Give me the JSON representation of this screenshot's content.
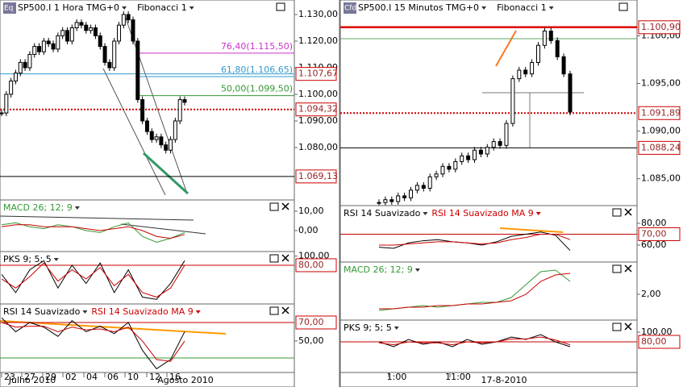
{
  "left": {
    "main": {
      "icon": "Eq",
      "title": "SP500.I 1 Hora TMG+0",
      "indicator": "Fibonacci 1",
      "ylim": [
        1060.3,
        1135.45
      ],
      "yticks": [
        {
          "value": 1130,
          "label": "1.130,00"
        },
        {
          "value": 1120,
          "label": "1.120,00"
        },
        {
          "value": 1110,
          "label": "1.110,00"
        },
        {
          "value": 1100,
          "label": "1.100,00"
        },
        {
          "value": 1090,
          "label": "1.090,00"
        },
        {
          "value": 1080,
          "label": "1.080,00"
        }
      ],
      "levels": [
        {
          "value": 1107.67,
          "label": "1.107,67",
          "color": "#3399cc"
        },
        {
          "value": 1094.32,
          "label": "1.094,32",
          "color": "#cc0000"
        },
        {
          "value": 1069.13,
          "label": "1.069,13",
          "color": "#000000"
        }
      ],
      "fibonacci": [
        {
          "value": 1115.5,
          "label": "76,40(1.115,50)",
          "color": "#cc33cc"
        },
        {
          "value": 1106.65,
          "label": "61,80(1.106,65)",
          "color": "#3399cc"
        },
        {
          "value": 1099.5,
          "label": "50,00(1.099,50)",
          "color": "#339933"
        }
      ],
      "prices": [
        1093,
        1100,
        1105,
        1108,
        1112,
        1110,
        1115,
        1118,
        1116,
        1120,
        1119,
        1117,
        1122,
        1124,
        1120,
        1125,
        1127,
        1126,
        1124,
        1125,
        1122,
        1118,
        1112,
        1110,
        1120,
        1126,
        1130,
        1128,
        1120,
        1098,
        1090,
        1086,
        1083,
        1084,
        1081,
        1079,
        1083,
        1090,
        1098,
        1097
      ]
    },
    "macd": {
      "title": "MACD 26; 12; 9",
      "ylim": [
        -10.8,
        15.8
      ],
      "yticks": [
        {
          "value": 10,
          "label": "10,00"
        },
        {
          "value": 0,
          "label": "0,00"
        }
      ],
      "series": [
        {
          "color": "#339933",
          "values": [
            3,
            4,
            2,
            1,
            3,
            2,
            0,
            -1,
            2,
            4,
            -3,
            -6,
            -4,
            -1
          ]
        },
        {
          "color": "#cc0000",
          "values": [
            2,
            3,
            3,
            2,
            2,
            2,
            1,
            0,
            1,
            2,
            0,
            -3,
            -4,
            -2
          ]
        }
      ]
    },
    "pks": {
      "title": "PKS 9; 5; 5",
      "ylim": [
        -5,
        110
      ],
      "yticks": [
        {
          "value": 100,
          "label": "100,00"
        }
      ],
      "levels": [
        {
          "value": 80,
          "label": "80,00",
          "color": "#cc0000"
        }
      ],
      "series": [
        {
          "color": "#000000",
          "values": [
            60,
            20,
            70,
            90,
            30,
            80,
            40,
            85,
            20,
            70,
            10,
            5,
            40,
            90
          ]
        },
        {
          "color": "#cc0000",
          "values": [
            50,
            30,
            55,
            85,
            45,
            70,
            50,
            75,
            35,
            60,
            20,
            10,
            30,
            80
          ]
        }
      ]
    },
    "rsi": {
      "title": "RSI 14 Suavizado",
      "title2": "RSI 14 Suavizado MA 9",
      "ylim": [
        16,
        90
      ],
      "yticks": [
        {
          "value": 50,
          "label": "50,00"
        }
      ],
      "levels": [
        {
          "value": 70,
          "label": "70,00",
          "color": "#cc0000"
        }
      ],
      "series": [
        {
          "color": "#000000",
          "values": [
            75,
            60,
            70,
            65,
            55,
            72,
            60,
            66,
            58,
            70,
            40,
            20,
            30,
            60
          ]
        },
        {
          "color": "#cc0000",
          "values": [
            70,
            65,
            66,
            66,
            60,
            65,
            62,
            63,
            60,
            65,
            50,
            30,
            28,
            50
          ]
        }
      ]
    },
    "xaxis": {
      "ticks": [
        "23",
        "27",
        "29",
        "02",
        "04",
        "06",
        "10",
        "12",
        "16"
      ],
      "months": [
        "Julho 2010",
        "Agosto 2010"
      ]
    }
  },
  "right": {
    "main": {
      "icon": "Cfd",
      "title": "SP500.I 15 Minutos TMG+0",
      "indicator": "Fibonacci 1",
      "ylim": [
        1082.18,
        1103.76
      ],
      "yticks": [
        {
          "value": 1100,
          "label": "1.100,00"
        },
        {
          "value": 1095,
          "label": "1.095,00"
        },
        {
          "value": 1090,
          "label": "1.090,00"
        },
        {
          "value": 1085,
          "label": "1.085,00"
        }
      ],
      "levels": [
        {
          "value": 1100.9,
          "label": "1.100,90",
          "color": "#dd0000"
        },
        {
          "value": 1091.89,
          "label": "1.091,89",
          "color": "#cc0000"
        },
        {
          "value": 1088.24,
          "label": "1.088,24",
          "color": "#000000"
        }
      ],
      "prices": [
        1082.5,
        1082.8,
        1082.6,
        1083.2,
        1083,
        1083.8,
        1084.3,
        1084,
        1085.2,
        1085.5,
        1086.3,
        1086,
        1086.8,
        1087.4,
        1087,
        1088,
        1087.6,
        1088.3,
        1088.9,
        1088.5,
        1090.8,
        1095.5,
        1096.4,
        1096,
        1097.2,
        1099,
        1100.5,
        1099.5,
        1097.8,
        1096,
        1092
      ]
    },
    "rsi": {
      "title": "RSI 14 Suavizado",
      "title2": "RSI 14 Suavizado MA 9",
      "ylim": [
        44.4,
        96.3
      ],
      "yticks": [
        {
          "value": 80,
          "label": "80,00"
        },
        {
          "value": 60,
          "label": "60,00"
        }
      ],
      "levels": [
        {
          "value": 70,
          "label": "70,00",
          "color": "#cc0000"
        }
      ],
      "series": [
        {
          "color": "#000000",
          "values": [
            58,
            57,
            62,
            64,
            65,
            63,
            62,
            60,
            63,
            68,
            70,
            72,
            69,
            55
          ]
        },
        {
          "color": "#cc0000",
          "values": [
            60,
            60,
            61,
            62,
            63,
            63,
            62,
            61,
            62,
            65,
            67,
            70,
            70,
            65
          ]
        }
      ]
    },
    "macd": {
      "title": "MACD 26; 12; 9",
      "ylim": [
        0.4,
        4
      ],
      "yticks": [
        {
          "value": 2,
          "label": "2,00"
        }
      ],
      "series": [
        {
          "color": "#339933",
          "values": [
            1,
            1.1,
            1.2,
            1.3,
            1.2,
            1.3,
            1.4,
            1.5,
            1.5,
            1.8,
            2.6,
            3.4,
            3.5,
            2.8
          ]
        },
        {
          "color": "#cc0000",
          "values": [
            1.1,
            1.1,
            1.2,
            1.2,
            1.3,
            1.3,
            1.4,
            1.4,
            1.5,
            1.6,
            2,
            2.8,
            3.2,
            3.3
          ]
        }
      ]
    },
    "pks": {
      "title": "PKS 9; 5; 5",
      "ylim": [
        16.7,
        125
      ],
      "yticks": [
        {
          "value": 100,
          "label": "100,00"
        }
      ],
      "levels": [
        {
          "value": 80,
          "label": "80,00",
          "color": "#cc0000"
        }
      ],
      "series": [
        {
          "color": "#000000",
          "values": [
            80,
            70,
            85,
            75,
            80,
            70,
            85,
            75,
            80,
            90,
            85,
            95,
            80,
            70
          ]
        },
        {
          "color": "#cc0000",
          "values": [
            78,
            74,
            80,
            78,
            78,
            74,
            80,
            78,
            80,
            86,
            86,
            90,
            84,
            74
          ]
        }
      ]
    },
    "xaxis": {
      "ticks": [
        "1:00",
        "11:00"
      ],
      "months": [
        "17-8-2010"
      ]
    }
  }
}
